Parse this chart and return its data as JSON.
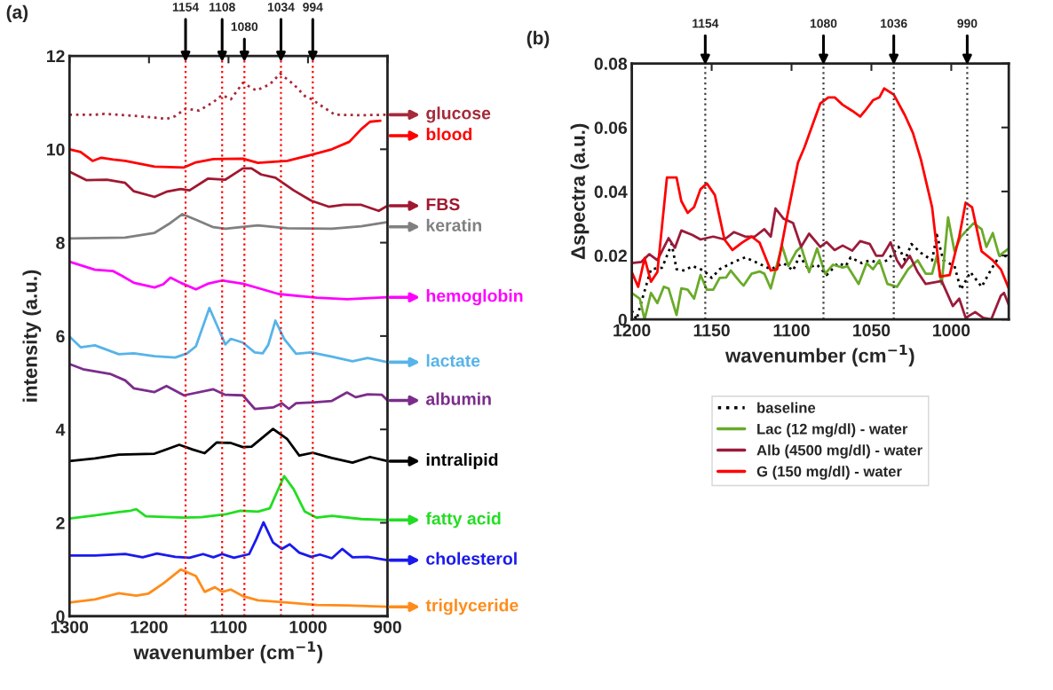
{
  "chart_data": [
    {
      "type": "line",
      "title": "(a)",
      "legend": "right",
      "xlabel": "wavenumber (cm$^{−1}$)",
      "ylabel": "intensity (a.u.)",
      "xlim": [
        1300,
        900
      ],
      "ylim": [
        0,
        12
      ],
      "xticks": [
        1300,
        1200,
        1100,
        1000,
        900
      ],
      "yticks": [
        0,
        2,
        4,
        6,
        8,
        10,
        12
      ],
      "ref_lines": [
        {
          "axis": "x",
          "value": 1154,
          "label": "1154",
          "color": "#ff0000",
          "line_style": "dotted"
        },
        {
          "axis": "x",
          "value": 1108,
          "label": "1108",
          "color": "#ff0000",
          "line_style": "dotted"
        },
        {
          "axis": "x",
          "value": 1080,
          "label": "1080",
          "color": "#ff0000",
          "line_style": "dotted"
        },
        {
          "axis": "x",
          "value": 1034,
          "label": "1034",
          "color": "#ff0000",
          "line_style": "dotted"
        },
        {
          "axis": "x",
          "value": 994,
          "label": "994",
          "color": "#ff0000",
          "line_style": "dotted"
        }
      ],
      "series": [
        {
          "name": "glucose",
          "color": "#a52a3a",
          "line_style": "dotted",
          "x": [
            1300,
            1268,
            1256,
            1230,
            1193,
            1178,
            1167,
            1154,
            1137,
            1119,
            1108,
            1097,
            1082,
            1065,
            1048,
            1035,
            1018,
            1004,
            994,
            985,
            966,
            933,
            900
          ],
          "values": [
            10.74,
            10.74,
            10.76,
            10.73,
            10.68,
            10.65,
            10.71,
            10.87,
            10.83,
            11.01,
            11.16,
            11.07,
            11.42,
            11.26,
            11.39,
            11.62,
            11.39,
            11.14,
            11.06,
            10.95,
            10.74,
            10.73,
            10.74
          ]
        },
        {
          "name": "blood",
          "color": "#ff0000",
          "x": [
            1300,
            1286,
            1271,
            1260,
            1245,
            1230,
            1193,
            1156,
            1141,
            1119,
            1082,
            1063,
            1026,
            996,
            970,
            948,
            933,
            922,
            909
          ],
          "values": [
            10.0,
            9.94,
            9.75,
            9.82,
            9.78,
            9.75,
            9.63,
            9.61,
            9.72,
            9.79,
            9.8,
            9.71,
            9.75,
            9.88,
            10.0,
            10.16,
            10.43,
            10.59,
            10.61
          ]
        },
        {
          "name": "FBS",
          "color": "#a01830",
          "x": [
            1300,
            1279,
            1253,
            1230,
            1219,
            1193,
            1178,
            1160,
            1149,
            1126,
            1104,
            1082,
            1071,
            1059,
            1041,
            1018,
            996,
            974,
            955,
            933,
            911,
            900
          ],
          "values": [
            9.52,
            9.34,
            9.35,
            9.28,
            9.1,
            8.98,
            9.09,
            9.15,
            9.12,
            9.37,
            9.35,
            9.59,
            9.59,
            9.46,
            9.39,
            9.12,
            8.9,
            8.77,
            8.81,
            8.81,
            8.68,
            8.79
          ]
        },
        {
          "name": "keratin",
          "color": "#808080",
          "x": [
            1300,
            1230,
            1193,
            1175,
            1158,
            1141,
            1119,
            1104,
            1063,
            1026,
            970,
            933,
            900
          ],
          "values": [
            8.09,
            8.11,
            8.21,
            8.4,
            8.61,
            8.49,
            8.33,
            8.3,
            8.37,
            8.31,
            8.3,
            8.35,
            8.44
          ]
        },
        {
          "name": "hemoglobin",
          "color": "#ff00ff",
          "x": [
            1300,
            1268,
            1245,
            1234,
            1219,
            1193,
            1182,
            1173,
            1160,
            1141,
            1126,
            1108,
            1082,
            1059,
            1037,
            1007,
            989,
            951,
            900
          ],
          "values": [
            7.59,
            7.42,
            7.39,
            7.29,
            7.14,
            7.04,
            7.11,
            7.25,
            7.14,
            7.0,
            7.12,
            7.19,
            7.12,
            7.01,
            6.9,
            6.85,
            6.82,
            6.79,
            6.83
          ]
        },
        {
          "name": "lactate",
          "color": "#56b4e9",
          "x": [
            1300,
            1286,
            1268,
            1238,
            1219,
            1193,
            1167,
            1152,
            1141,
            1124,
            1115,
            1104,
            1097,
            1082,
            1067,
            1057,
            1050,
            1041,
            1030,
            1015,
            996,
            970,
            944,
            925,
            900
          ],
          "values": [
            5.99,
            5.76,
            5.8,
            5.61,
            5.63,
            5.57,
            5.54,
            5.63,
            5.78,
            6.6,
            6.25,
            5.82,
            5.94,
            5.86,
            5.65,
            5.63,
            5.81,
            6.33,
            5.94,
            5.62,
            5.65,
            5.56,
            5.46,
            5.53,
            5.44
          ]
        },
        {
          "name": "albumin",
          "color": "#7b2d8b",
          "x": [
            1300,
            1283,
            1249,
            1230,
            1219,
            1193,
            1178,
            1156,
            1119,
            1104,
            1082,
            1067,
            1044,
            1033,
            1024,
            1015,
            992,
            970,
            951,
            940,
            925,
            907,
            900
          ],
          "values": [
            5.4,
            5.29,
            5.19,
            5.05,
            4.88,
            4.8,
            4.93,
            4.73,
            4.86,
            4.74,
            4.73,
            4.44,
            4.47,
            4.56,
            4.44,
            4.56,
            4.58,
            4.61,
            4.79,
            4.69,
            4.75,
            4.74,
            4.62
          ]
        },
        {
          "name": "intralipid",
          "color": "#000000",
          "x": [
            1300,
            1268,
            1238,
            1193,
            1162,
            1145,
            1130,
            1115,
            1097,
            1082,
            1071,
            1044,
            1026,
            1011,
            994,
            970,
            944,
            922,
            900
          ],
          "values": [
            3.32,
            3.38,
            3.46,
            3.48,
            3.67,
            3.57,
            3.49,
            3.72,
            3.71,
            3.62,
            3.63,
            4.01,
            3.79,
            3.44,
            3.5,
            3.39,
            3.29,
            3.41,
            3.32
          ]
        },
        {
          "name": "fatty acid",
          "color": "#22dd22",
          "x": [
            1300,
            1268,
            1238,
            1223,
            1216,
            1204,
            1156,
            1134,
            1104,
            1085,
            1063,
            1048,
            1039,
            1030,
            1018,
            1004,
            989,
            970,
            933,
            900
          ],
          "values": [
            2.09,
            2.16,
            2.23,
            2.26,
            2.29,
            2.14,
            2.11,
            2.12,
            2.18,
            2.26,
            2.24,
            2.31,
            2.66,
            3.0,
            2.72,
            2.24,
            2.11,
            2.15,
            2.08,
            2.06
          ]
        },
        {
          "name": "cholesterol",
          "color": "#1a1aee",
          "x": [
            1300,
            1268,
            1230,
            1208,
            1190,
            1167,
            1149,
            1132,
            1119,
            1108,
            1093,
            1074,
            1065,
            1056,
            1044,
            1033,
            1023,
            1011,
            996,
            985,
            970,
            957,
            944,
            925,
            900
          ],
          "values": [
            1.3,
            1.3,
            1.33,
            1.26,
            1.34,
            1.27,
            1.25,
            1.33,
            1.26,
            1.33,
            1.25,
            1.33,
            1.65,
            2.01,
            1.58,
            1.44,
            1.54,
            1.36,
            1.27,
            1.32,
            1.24,
            1.44,
            1.26,
            1.27,
            1.2
          ]
        },
        {
          "name": "triglyceride",
          "color": "#ff8c1a",
          "x": [
            1300,
            1268,
            1238,
            1216,
            1201,
            1182,
            1160,
            1141,
            1130,
            1117,
            1108,
            1097,
            1082,
            1063,
            1026,
            989,
            951,
            900
          ],
          "values": [
            0.29,
            0.36,
            0.49,
            0.44,
            0.48,
            0.7,
            1.0,
            0.86,
            0.52,
            0.62,
            0.52,
            0.57,
            0.43,
            0.34,
            0.29,
            0.24,
            0.23,
            0.2
          ]
        }
      ]
    },
    {
      "type": "line",
      "title": "(b)",
      "xlabel": "wavenumber (cm$^{−1}$)",
      "ylabel": "Δspectra (a.u.)",
      "xlim": [
        1200,
        964
      ],
      "ylim": [
        0,
        0.08
      ],
      "xticks": [
        1200,
        1150,
        1100,
        1050,
        1000
      ],
      "yticks": [
        0,
        0.02,
        0.04,
        0.06,
        0.08
      ],
      "legend": "bottom",
      "ref_lines": [
        {
          "axis": "x",
          "value": 1154,
          "label": "1154",
          "color": "#404040",
          "line_style": "dotted"
        },
        {
          "axis": "x",
          "value": 1080,
          "label": "1080",
          "color": "#404040",
          "line_style": "dotted"
        },
        {
          "axis": "x",
          "value": 1036,
          "label": "1036",
          "color": "#404040",
          "line_style": "dotted"
        },
        {
          "axis": "x",
          "value": 990,
          "label": "990",
          "color": "#404040",
          "line_style": "dotted"
        }
      ],
      "series": [
        {
          "name": "baseline",
          "color": "#000000",
          "line_style": "dotted",
          "x": [
            1200,
            1197,
            1194,
            1188,
            1181,
            1175,
            1172,
            1167,
            1162,
            1155,
            1150,
            1145,
            1136,
            1129,
            1121,
            1113,
            1105,
            1099,
            1095,
            1090,
            1084,
            1078,
            1071,
            1066,
            1063,
            1056,
            1051,
            1045,
            1040,
            1033,
            1029,
            1025,
            1019,
            1012,
            1009,
            1005,
            998,
            994,
            988,
            981,
            975,
            969,
            964
          ],
          "values": [
            0.0028,
            0.0,
            0.0055,
            0.0157,
            0.0162,
            0.0236,
            0.0157,
            0.0153,
            0.0167,
            0.0153,
            0.013,
            0.0157,
            0.018,
            0.0194,
            0.0176,
            0.0157,
            0.0176,
            0.0153,
            0.0199,
            0.0162,
            0.0171,
            0.0139,
            0.0176,
            0.0167,
            0.0194,
            0.0176,
            0.0185,
            0.0176,
            0.0185,
            0.0227,
            0.0185,
            0.0236,
            0.0208,
            0.0185,
            0.0264,
            0.0185,
            0.0167,
            0.0093,
            0.0148,
            0.0102,
            0.0157,
            0.0204,
            0.0194
          ]
        },
        {
          "name": "Lac (12 mg/dl) - water",
          "color": "#6aaa2a",
          "x": [
            1200,
            1195,
            1192,
            1188,
            1184,
            1180,
            1177,
            1172,
            1169,
            1165,
            1161,
            1157,
            1153,
            1149,
            1145,
            1141,
            1138,
            1132,
            1130,
            1125,
            1120,
            1117,
            1113,
            1106,
            1102,
            1097,
            1094,
            1089,
            1084,
            1079,
            1074,
            1068,
            1065,
            1058,
            1053,
            1049,
            1045,
            1040,
            1034,
            1027,
            1021,
            1016,
            1012,
            1009,
            1006,
            1002,
            998,
            994,
            986,
            981,
            978,
            974,
            970,
            964
          ],
          "values": [
            0.0083,
            0.0065,
            0.0,
            0.0083,
            0.0051,
            0.0102,
            0.0097,
            0.0014,
            0.0097,
            0.0093,
            0.0065,
            0.0139,
            0.0093,
            0.0093,
            0.013,
            0.0131,
            0.0153,
            0.0116,
            0.0106,
            0.0143,
            0.015,
            0.0143,
            0.0097,
            0.0231,
            0.0167,
            0.0213,
            0.0227,
            0.0148,
            0.0222,
            0.0143,
            0.0171,
            0.0162,
            0.0167,
            0.0111,
            0.0176,
            0.0157,
            0.0185,
            0.0111,
            0.0102,
            0.0157,
            0.0185,
            0.0143,
            0.0143,
            0.0199,
            0.0111,
            0.0319,
            0.0213,
            0.0259,
            0.0301,
            0.0282,
            0.0227,
            0.027,
            0.0199,
            0.0222
          ]
        },
        {
          "name": "Alb (4500 mg/dl) - water",
          "color": "#9b1b3a",
          "x": [
            1200,
            1194,
            1189,
            1184,
            1177,
            1173,
            1169,
            1162,
            1157,
            1149,
            1142,
            1136,
            1129,
            1123,
            1117,
            1113,
            1110,
            1105,
            1099,
            1094,
            1089,
            1082,
            1078,
            1073,
            1068,
            1062,
            1057,
            1051,
            1047,
            1043,
            1038,
            1034,
            1031,
            1026,
            1021,
            1016,
            1006,
            999,
            995,
            991,
            985,
            980,
            975,
            969,
            967,
            964
          ],
          "values": [
            0.0176,
            0.018,
            0.0204,
            0.0185,
            0.0254,
            0.0224,
            0.0278,
            0.0264,
            0.025,
            0.0259,
            0.025,
            0.0273,
            0.0259,
            0.0259,
            0.0282,
            0.0259,
            0.0347,
            0.0315,
            0.0301,
            0.0227,
            0.0268,
            0.0227,
            0.0242,
            0.0217,
            0.0231,
            0.0215,
            0.0245,
            0.0236,
            0.0199,
            0.0199,
            0.0241,
            0.0185,
            0.0162,
            0.0199,
            0.0148,
            0.0111,
            0.012,
            0.0042,
            0.0065,
            0.0005,
            0.0023,
            0.0005,
            0.0,
            0.0074,
            0.0083,
            0.0046
          ]
        },
        {
          "name": "G (150 mg/dl) - water",
          "color": "#ff0000",
          "x": [
            1200,
            1196,
            1192,
            1188,
            1184,
            1178,
            1172,
            1169,
            1165,
            1161,
            1157,
            1153,
            1148,
            1142,
            1137,
            1131,
            1125,
            1120,
            1113,
            1109,
            1103,
            1096,
            1092,
            1086,
            1082,
            1077,
            1073,
            1068,
            1062,
            1057,
            1054,
            1049,
            1045,
            1042,
            1036,
            1029,
            1024,
            1019,
            1012,
            1007,
            1001,
            995,
            991,
            987,
            981,
            974,
            969,
            964
          ],
          "values": [
            0.0148,
            0.0102,
            0.0192,
            0.0118,
            0.0148,
            0.0444,
            0.0444,
            0.037,
            0.0333,
            0.0351,
            0.0407,
            0.0425,
            0.0389,
            0.025,
            0.0217,
            0.024,
            0.0259,
            0.024,
            0.0153,
            0.0157,
            0.0315,
            0.049,
            0.0537,
            0.062,
            0.0675,
            0.0694,
            0.0694,
            0.0671,
            0.0652,
            0.0634,
            0.0652,
            0.0685,
            0.0694,
            0.0722,
            0.0703,
            0.0638,
            0.0583,
            0.05,
            0.0351,
            0.0134,
            0.0139,
            0.0259,
            0.0365,
            0.0351,
            0.0213,
            0.0185,
            0.0157,
            0.0097
          ]
        }
      ]
    }
  ]
}
